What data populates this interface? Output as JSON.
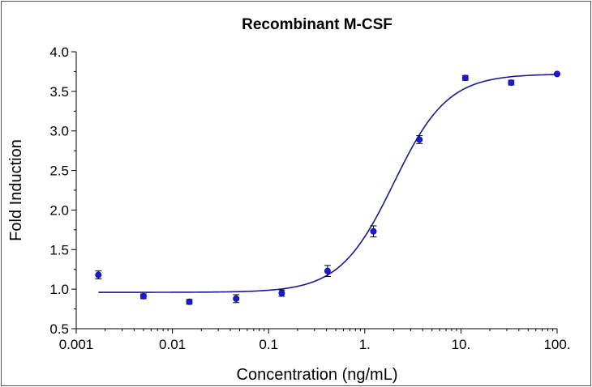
{
  "chart_data": {
    "type": "scatter",
    "title": "Recombinant M-CSF",
    "xlabel": "Concentration (ng/mL)",
    "ylabel": "Fold Induction",
    "x_scale": "log",
    "xlim": [
      0.001,
      100
    ],
    "ylim": [
      0.5,
      4.0
    ],
    "x_ticks": [
      0.001,
      0.01,
      0.1,
      1,
      10,
      100
    ],
    "x_tick_labels": [
      "0.001",
      "0.01",
      "0.1",
      "1.",
      "10.",
      "100."
    ],
    "y_ticks": [
      0.5,
      1.0,
      1.5,
      2.0,
      2.5,
      3.0,
      3.5,
      4.0
    ],
    "y_tick_labels": [
      "0.5",
      "1.0",
      "1.5",
      "2.0",
      "2.5",
      "3.0",
      "3.5",
      "4.0"
    ],
    "grid": false,
    "legend": "none",
    "colors": {
      "points": "#1a1adb",
      "curve": "#1a1a8c",
      "axes": "#000000"
    },
    "series": [
      {
        "points": [
          {
            "x": 0.0017,
            "y": 1.18,
            "err": 0.05
          },
          {
            "x": 0.005,
            "y": 0.91,
            "err": 0.03
          },
          {
            "x": 0.015,
            "y": 0.84,
            "err": 0.03
          },
          {
            "x": 0.046,
            "y": 0.88,
            "err": 0.05
          },
          {
            "x": 0.137,
            "y": 0.95,
            "err": 0.04
          },
          {
            "x": 0.41,
            "y": 1.23,
            "err": 0.07
          },
          {
            "x": 1.23,
            "y": 1.73,
            "err": 0.07
          },
          {
            "x": 3.7,
            "y": 2.89,
            "err": 0.05
          },
          {
            "x": 11.1,
            "y": 3.67,
            "err": 0.03
          },
          {
            "x": 33.3,
            "y": 3.61,
            "err": 0.03
          },
          {
            "x": 100,
            "y": 3.72,
            "err": 0.0
          }
        ]
      }
    ],
    "fit_curve": {
      "model": "4PL",
      "bottom": 0.96,
      "top": 3.72,
      "ec50": 2.0,
      "hill": 1.55,
      "x_range": [
        0.0017,
        100
      ]
    }
  }
}
